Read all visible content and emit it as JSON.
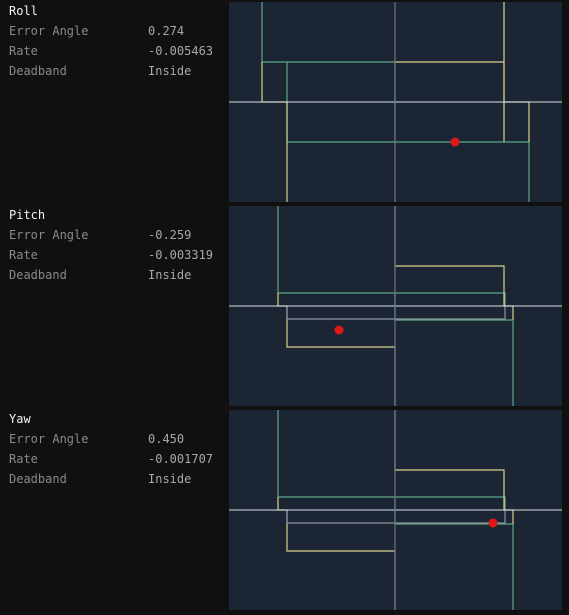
{
  "colors": {
    "background": "#101010",
    "plot_background": "#1c2533",
    "green_region": "#5aa885",
    "yellow_region": "#d9cf8a",
    "axis_lines": "#d8e0e8",
    "center_line": "#6b7580",
    "state_marker": "#e01818"
  },
  "axes": [
    {
      "title": "Roll",
      "rows": [
        {
          "label": "Error Angle",
          "value": "0.274"
        },
        {
          "label": "Rate",
          "value": "-0.005463"
        },
        {
          "label": "Deadband",
          "value": "Inside"
        }
      ],
      "state": {
        "error_angle": 0.274,
        "rate": -0.005463
      }
    },
    {
      "title": "Pitch",
      "rows": [
        {
          "label": "Error Angle",
          "value": "-0.259"
        },
        {
          "label": "Rate",
          "value": "-0.003319"
        },
        {
          "label": "Deadband",
          "value": "Inside"
        }
      ],
      "state": {
        "error_angle": -0.259,
        "rate": -0.003319
      }
    },
    {
      "title": "Yaw",
      "rows": [
        {
          "label": "Error Angle",
          "value": "0.450"
        },
        {
          "label": "Rate",
          "value": "-0.001707"
        },
        {
          "label": "Deadband",
          "value": "Inside"
        }
      ],
      "state": {
        "error_angle": 0.45,
        "rate": -0.001707
      }
    }
  ]
}
